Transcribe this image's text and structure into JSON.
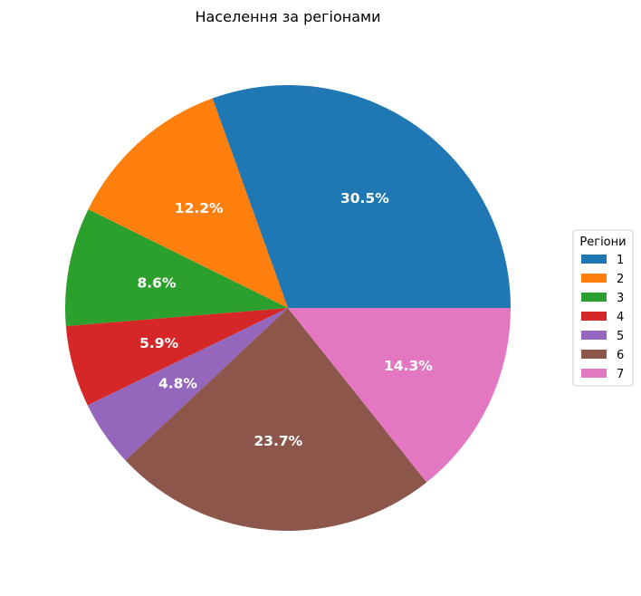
{
  "chart_data": {
    "type": "pie",
    "title": "Населення за регіонами",
    "categories": [
      "1",
      "2",
      "3",
      "4",
      "5",
      "6",
      "7"
    ],
    "values": [
      30.5,
      12.2,
      8.6,
      5.9,
      4.8,
      23.7,
      14.3
    ],
    "value_labels": [
      "30.5%",
      "12.2%",
      "8.6%",
      "5.9%",
      "4.8%",
      "23.7%",
      "14.3%"
    ],
    "colors": [
      "#1f77b4",
      "#ff7f0e",
      "#2ca02c",
      "#d62728",
      "#9467bd",
      "#8c564b",
      "#e377c2"
    ],
    "start_angle_deg": 0,
    "direction": "counterclockwise",
    "legend": {
      "title": "Регіони",
      "placement": "right"
    }
  }
}
